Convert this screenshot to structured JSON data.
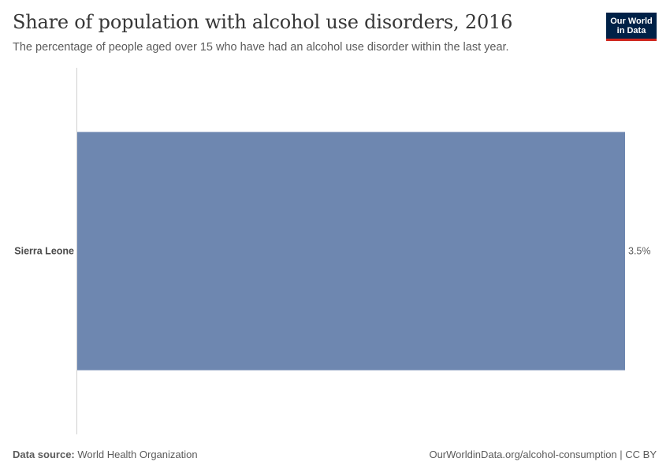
{
  "header": {
    "title": "Share of population with alcohol use disorders, 2016",
    "subtitle": "The percentage of people aged over 15 who have had an alcohol use disorder within the last year."
  },
  "logo": {
    "line1": "Our World",
    "line2": "in Data",
    "bg_color": "#002147",
    "accent_color": "#ce261e"
  },
  "footer": {
    "source_label": "Data source:",
    "source_value": "World Health Organization",
    "link_text": "OurWorldinData.org/alcohol-consumption | CC BY"
  },
  "chart_data": {
    "type": "bar",
    "orientation": "horizontal",
    "title": "Share of population with alcohol use disorders, 2016",
    "categories": [
      "Sierra Leone"
    ],
    "values": [
      3.5
    ],
    "value_labels": [
      "3.5%"
    ],
    "unit": "%",
    "xlim": [
      0,
      3.5
    ],
    "bar_color": "#6e87b0",
    "grid": false
  }
}
